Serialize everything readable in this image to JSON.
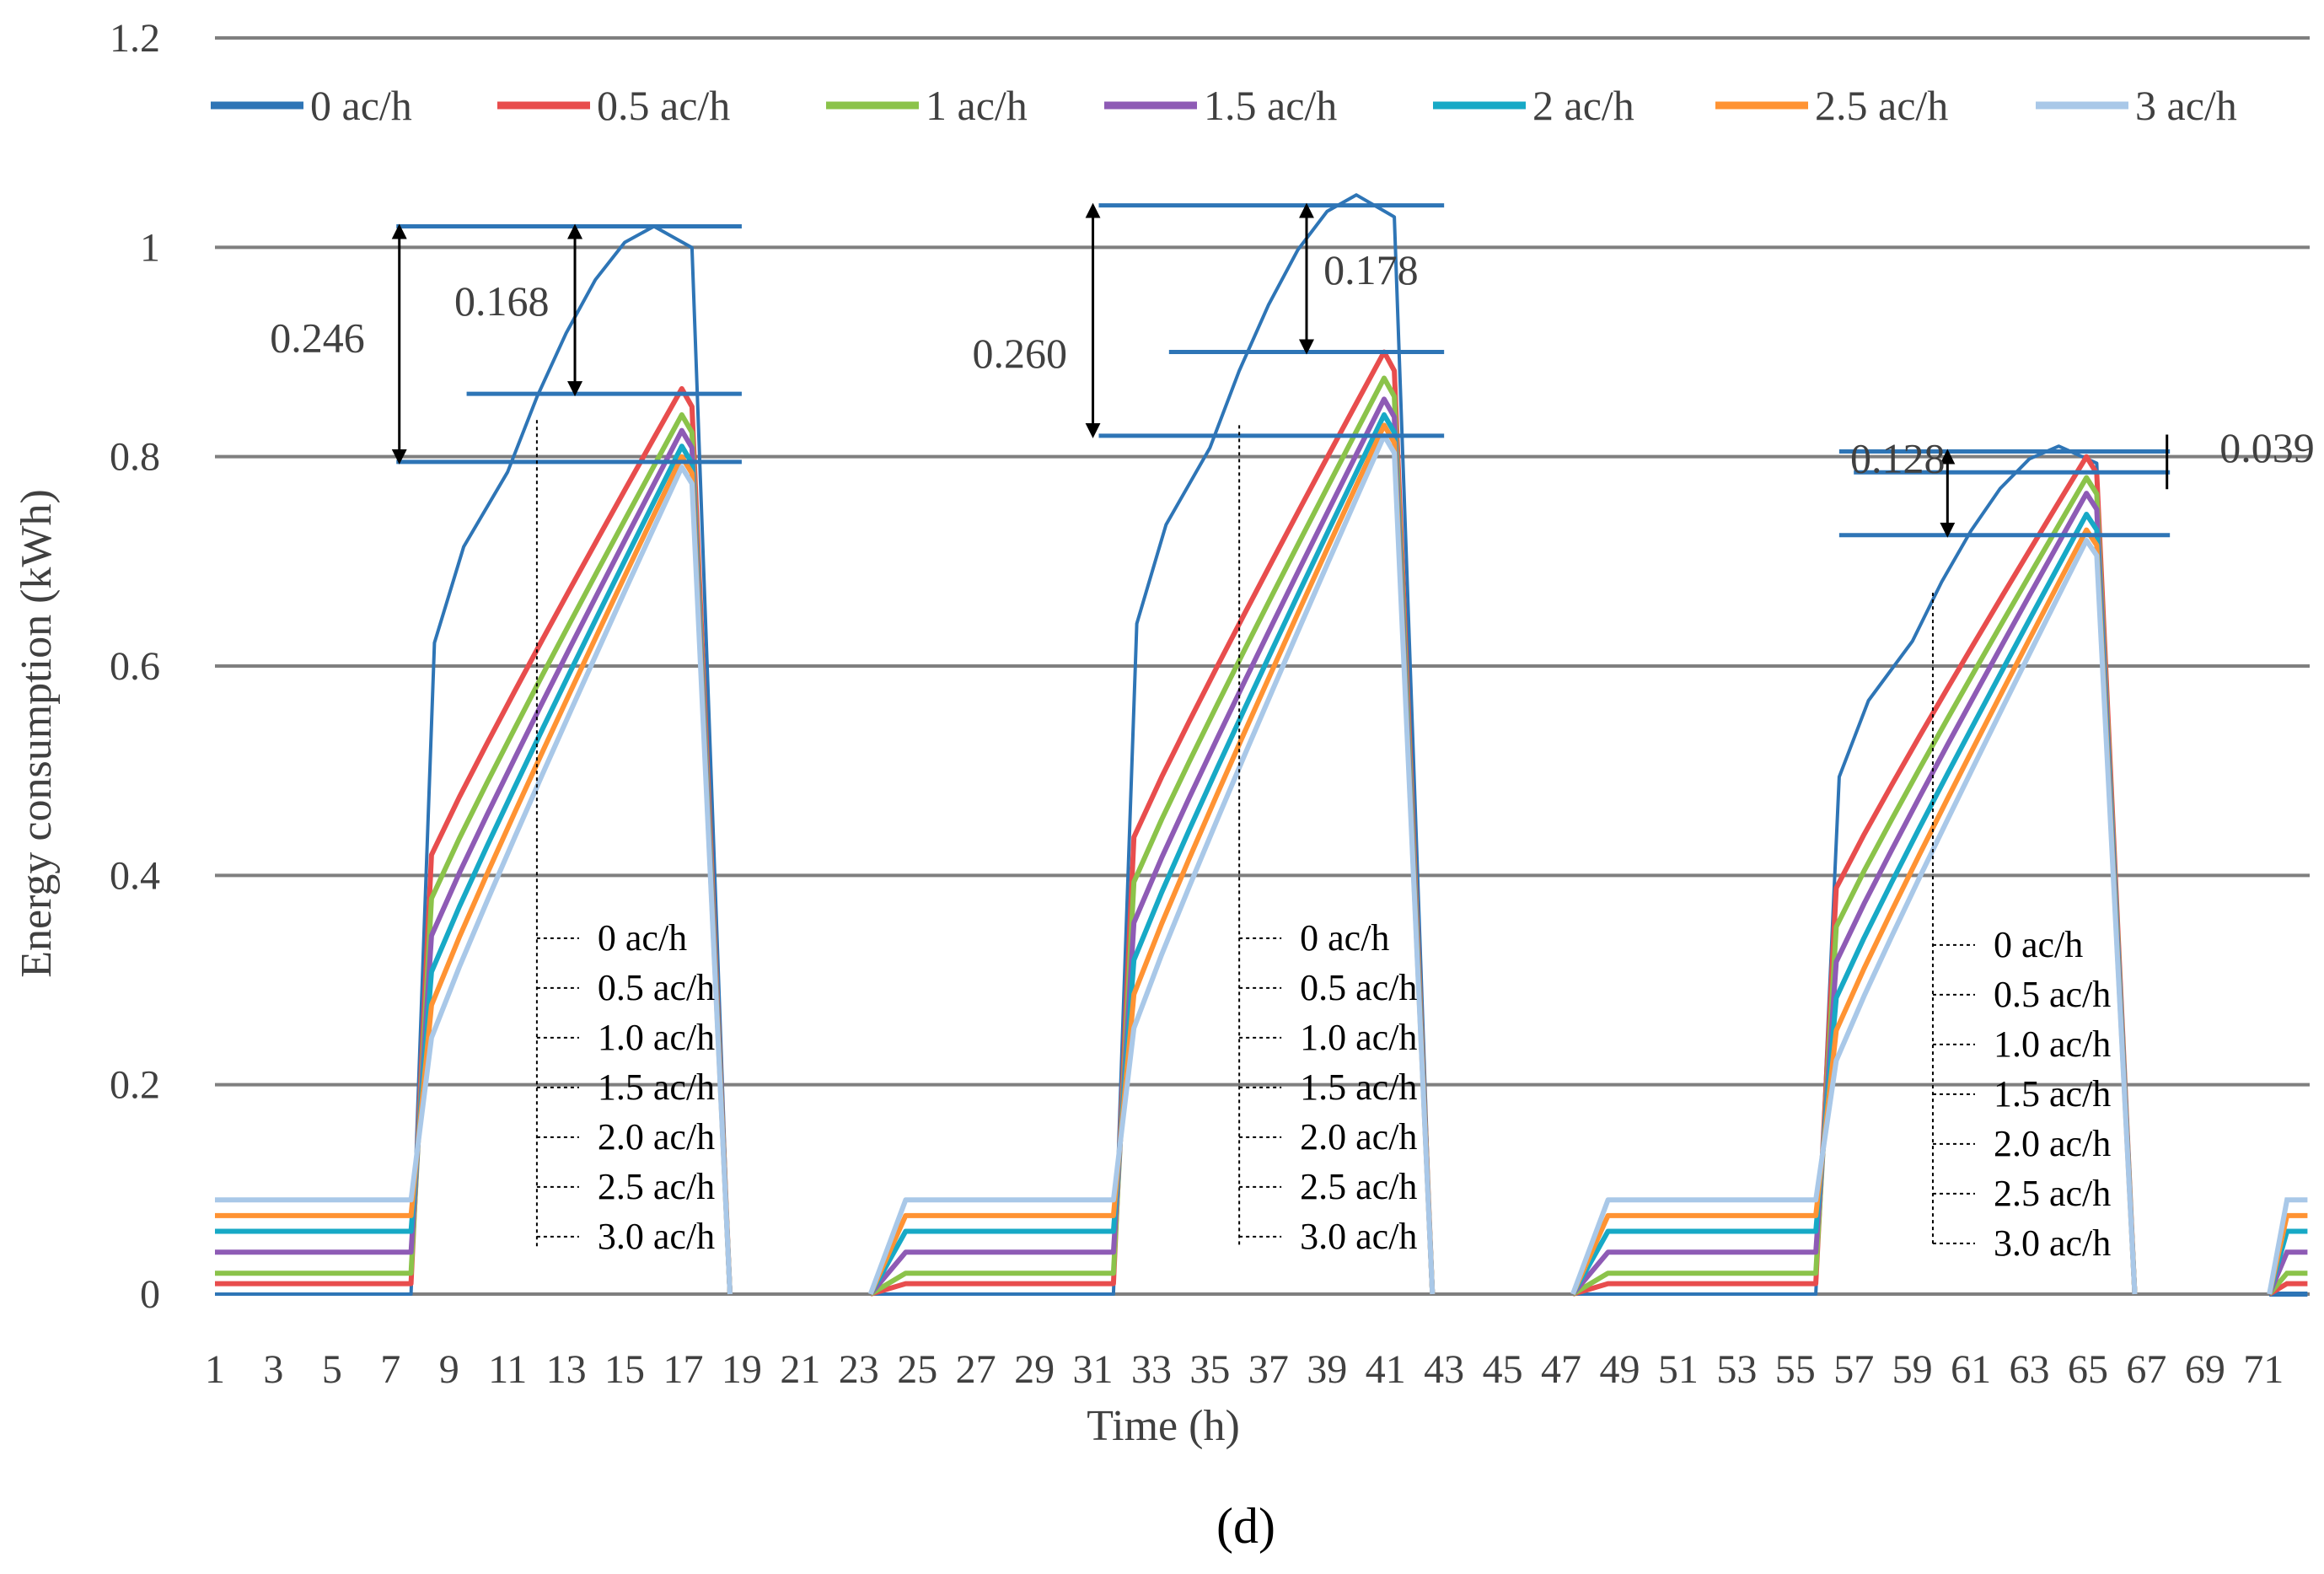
{
  "chart_data": {
    "type": "line",
    "title": "",
    "caption": "(d)",
    "xlabel": "Time (h)",
    "ylabel": "Energy consumption (kWh)",
    "ylim": [
      0,
      1.2
    ],
    "yticks": [
      "0",
      "0.2",
      "0.4",
      "0.6",
      "0.8",
      "1",
      "1.2"
    ],
    "xlim": [
      1,
      72
    ],
    "xticks": [
      "1",
      "3",
      "5",
      "7",
      "9",
      "11",
      "13",
      "15",
      "17",
      "19",
      "21",
      "23",
      "25",
      "27",
      "29",
      "31",
      "33",
      "35",
      "37",
      "39",
      "41",
      "43",
      "45",
      "47",
      "49",
      "51",
      "53",
      "55",
      "57",
      "59",
      "61",
      "63",
      "65",
      "67",
      "69",
      "71"
    ],
    "grid": "horizontal",
    "legend_position": "top",
    "series": [
      {
        "name": "0 ac/h",
        "color": "#2e75b6",
        "base": 0.0,
        "peaks": [
          1.02,
          1.05,
          0.81
        ]
      },
      {
        "name": "0.5 ac/h",
        "color": "#e84d4d",
        "base": 0.01,
        "peaks": [
          0.865,
          0.9,
          0.8
        ]
      },
      {
        "name": "1 ac/h",
        "color": "#8bc34a",
        "base": 0.02,
        "peaks": [
          0.84,
          0.875,
          0.78
        ]
      },
      {
        "name": "1.5 ac/h",
        "color": "#8e5bb5",
        "base": 0.04,
        "peaks": [
          0.825,
          0.855,
          0.765
        ]
      },
      {
        "name": "2 ac/h",
        "color": "#17a9c6",
        "base": 0.06,
        "peaks": [
          0.81,
          0.84,
          0.745
        ]
      },
      {
        "name": "2.5 ac/h",
        "color": "#ff9333",
        "base": 0.075,
        "peaks": [
          0.8,
          0.83,
          0.73
        ]
      },
      {
        "name": "3 ac/h",
        "color": "#a9c8e8",
        "base": 0.09,
        "peaks": [
          0.79,
          0.82,
          0.72
        ]
      }
    ],
    "annotations": [
      {
        "day": 1,
        "total": "0.246",
        "partial": "0.168",
        "top": 1.02,
        "mid": 0.86,
        "bottom": 0.795
      },
      {
        "day": 2,
        "total": "0.260",
        "partial": "0.178",
        "top": 1.04,
        "mid": 0.9,
        "bottom": 0.82
      },
      {
        "day": 3,
        "total": "0.128",
        "partial": "0.039",
        "top": 0.805,
        "mid": 0.785,
        "bottom": 0.725
      }
    ],
    "callout_labels": [
      "0 ac/h",
      "0.5 ac/h",
      "1.0 ac/h",
      "1.5 ac/h",
      "2.0 ac/h",
      "2.5 ac/h",
      "3.0 ac/h"
    ]
  }
}
